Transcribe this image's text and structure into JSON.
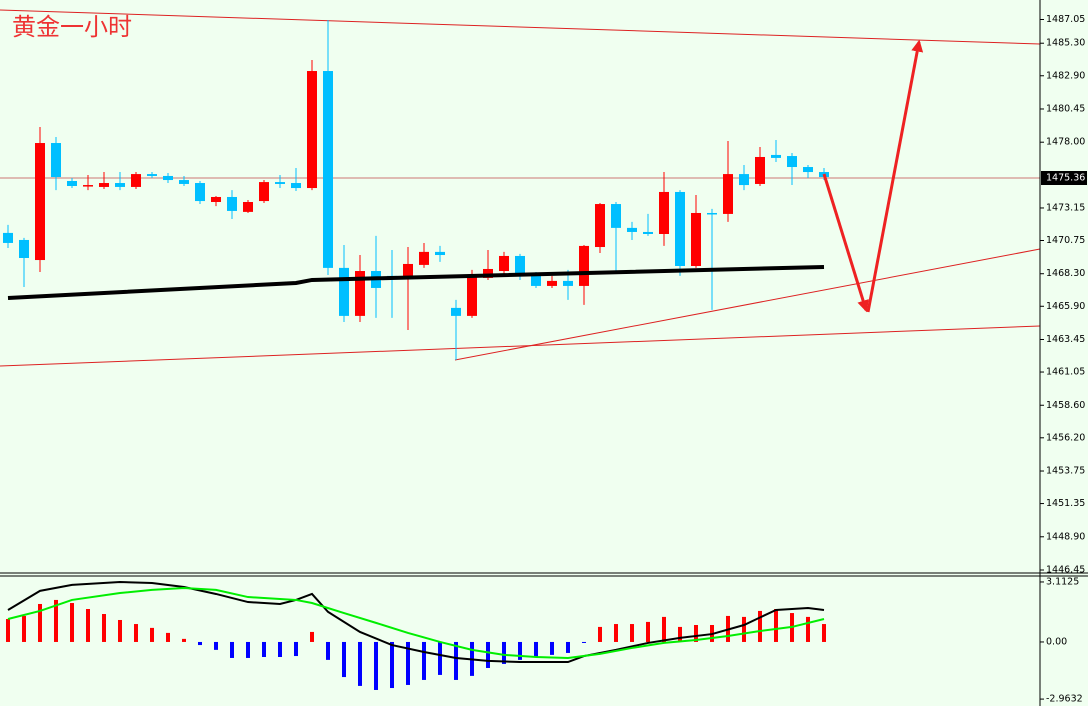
{
  "chart_data": [
    {
      "type": "candlestick",
      "title": "黄金一小时",
      "up_color": "#ff0000",
      "down_color": "#00bfff",
      "open": [
        1471.31,
        1470.79,
        1469.31,
        1477.94,
        1475.14,
        1474.77,
        1474.7,
        1474.99,
        1474.7,
        1475.65,
        1475.51,
        1475.21,
        1474.99,
        1473.59,
        1473.96,
        1472.86,
        1473.66,
        1475.06,
        1474.99,
        1474.62,
        1483.25,
        1468.73,
        1465.19,
        1468.5,
        1468.14,
        1467.99,
        1468.95,
        1469.91,
        1465.78,
        1465.19,
        1467.99,
        1468.5,
        1469.61,
        1468.14,
        1467.4,
        1467.77,
        1467.4,
        1470.27,
        1473.44,
        1471.68,
        1471.38,
        1471.23,
        1474.33,
        1468.87,
        1472.78,
        1472.71,
        1475.65,
        1474.92,
        1477.06,
        1476.98,
        1476.17,
        1475.8
      ],
      "high": [
        1471.9,
        1470.94,
        1479.12,
        1478.38,
        1475.36,
        1475.58,
        1475.8,
        1475.8,
        1475.8,
        1475.8,
        1475.73,
        1475.51,
        1475.14,
        1474.03,
        1474.47,
        1473.74,
        1475.21,
        1475.58,
        1476.1,
        1484.06,
        1487.01,
        1470.42,
        1469.68,
        1471.09,
        1470.05,
        1470.27,
        1470.57,
        1470.35,
        1466.37,
        1468.58,
        1470.05,
        1469.91,
        1469.76,
        1468.43,
        1468.14,
        1468.58,
        1470.42,
        1473.52,
        1473.59,
        1472.12,
        1472.71,
        1475.8,
        1474.47,
        1474.11,
        1473.08,
        1478.09,
        1476.32,
        1477.65,
        1478.16,
        1477.2,
        1476.32,
        1476.1
      ],
      "low": [
        1470.2,
        1467.32,
        1468.43,
        1474.47,
        1474.62,
        1474.47,
        1474.55,
        1474.47,
        1474.55,
        1475.36,
        1474.99,
        1474.77,
        1473.44,
        1473.29,
        1472.34,
        1472.78,
        1473.52,
        1474.62,
        1474.4,
        1474.47,
        1468.21,
        1464.74,
        1464.74,
        1465.04,
        1465.04,
        1464.15,
        1468.73,
        1469.17,
        1461.94,
        1465.04,
        1467.84,
        1468.28,
        1467.84,
        1467.25,
        1467.25,
        1466.37,
        1466.0,
        1469.83,
        1468.36,
        1470.79,
        1471.09,
        1470.35,
        1468.14,
        1468.73,
        1465.63,
        1472.12,
        1474.47,
        1474.77,
        1476.54,
        1474.84,
        1475.36,
        1475.21
      ],
      "close": [
        1470.57,
        1469.46,
        1477.94,
        1475.43,
        1474.77,
        1474.84,
        1474.99,
        1474.7,
        1475.65,
        1475.51,
        1475.21,
        1474.92,
        1473.66,
        1473.96,
        1472.93,
        1473.59,
        1475.06,
        1474.92,
        1474.62,
        1483.25,
        1468.73,
        1465.19,
        1468.5,
        1467.25,
        1467.91,
        1469.02,
        1469.91,
        1469.68,
        1465.19,
        1468.21,
        1468.65,
        1469.61,
        1468.14,
        1467.4,
        1467.77,
        1467.4,
        1470.35,
        1473.44,
        1471.68,
        1471.38,
        1471.23,
        1474.33,
        1468.87,
        1472.78,
        1472.71,
        1475.65,
        1474.84,
        1476.91,
        1476.84,
        1476.17,
        1475.8,
        1475.43
      ],
      "ma": {
        "color": "#000000",
        "x": [
          0,
          18,
          19,
          51
        ],
        "values": [
          1466.51,
          1467.62,
          1467.84,
          1468.8
        ]
      },
      "last_price": 1475.36,
      "ylim": [
        1446.45,
        1487.75
      ],
      "yticks": [
        1487.05,
        {
          "value": 1485.3,
          "label": "1485.30"
        },
        {
          "value": 1482.9,
          "label": "1482.90"
        },
        1480.45,
        {
          "value": 1478,
          "label": "1478.00"
        },
        1473.15,
        1470.75,
        {
          "value": 1468.3,
          "label": "1468.30"
        },
        {
          "value": 1465.9,
          "label": "1465.90"
        },
        1463.45,
        1461.05,
        {
          "value": 1458.6,
          "label": "1458.60"
        },
        {
          "value": 1456.2,
          "label": "1456.20"
        },
        1453.75,
        1451.35,
        {
          "value": 1448.9,
          "label": "1448.90"
        },
        1446.45
      ]
    },
    {
      "type": "macd",
      "positive_color": "#ff0000",
      "negative_color": "#0000ff",
      "histogram": [
        1.19,
        1.35,
        1.97,
        2.18,
        2.02,
        1.71,
        1.45,
        1.14,
        0.93,
        0.73,
        0.47,
        0.16,
        -0.16,
        -0.41,
        -0.83,
        -0.83,
        -0.78,
        -0.78,
        -0.73,
        0.52,
        -0.93,
        -1.82,
        -2.28,
        -2.49,
        -2.39,
        -2.23,
        -1.97,
        -1.71,
        -1.97,
        -1.76,
        -1.35,
        -1.14,
        -0.93,
        -0.78,
        -0.67,
        -0.57,
        -0.05,
        0.78,
        0.93,
        0.93,
        1.04,
        1.3,
        0.78,
        0.88,
        0.88,
        1.35,
        1.3,
        1.61,
        1.71,
        1.5,
        1.3,
        0.93
      ],
      "lines": [
        {
          "color": "#000000",
          "x": [
            0,
            2,
            4,
            7,
            9,
            11,
            13,
            15,
            17,
            18,
            19,
            20,
            22,
            24,
            26,
            28,
            30,
            32,
            34,
            35,
            36,
            38,
            40,
            42,
            44,
            46,
            48,
            50,
            51
          ],
          "values": [
            1.66,
            2.65,
            2.96,
            3.11,
            3.06,
            2.85,
            2.49,
            2.07,
            1.97,
            2.18,
            2.49,
            1.56,
            0.52,
            -0.16,
            -0.52,
            -0.83,
            -0.98,
            -1.04,
            -1.04,
            -1.04,
            -0.73,
            -0.41,
            -0.05,
            0.21,
            0.41,
            0.88,
            1.66,
            1.76,
            1.66
          ]
        },
        {
          "color": "#00ee00",
          "x": [
            0,
            2,
            4,
            7,
            9,
            11,
            13,
            15,
            17,
            18,
            19,
            21,
            23,
            25,
            27,
            29,
            31,
            33,
            35,
            37,
            39,
            41,
            43,
            45,
            47,
            49,
            51
          ],
          "values": [
            1.19,
            1.61,
            2.18,
            2.54,
            2.7,
            2.8,
            2.7,
            2.33,
            2.23,
            2.18,
            2.02,
            1.5,
            0.99,
            0.47,
            0,
            -0.41,
            -0.67,
            -0.78,
            -0.83,
            -0.62,
            -0.31,
            -0.05,
            0.1,
            0.31,
            0.57,
            0.78,
            1.19
          ]
        }
      ],
      "ylim": [
        -3.27,
        3.37
      ],
      "yticks": [
        3.1125,
        {
          "value": 0,
          "label": "0.00"
        },
        -2.9632
      ]
    }
  ]
}
